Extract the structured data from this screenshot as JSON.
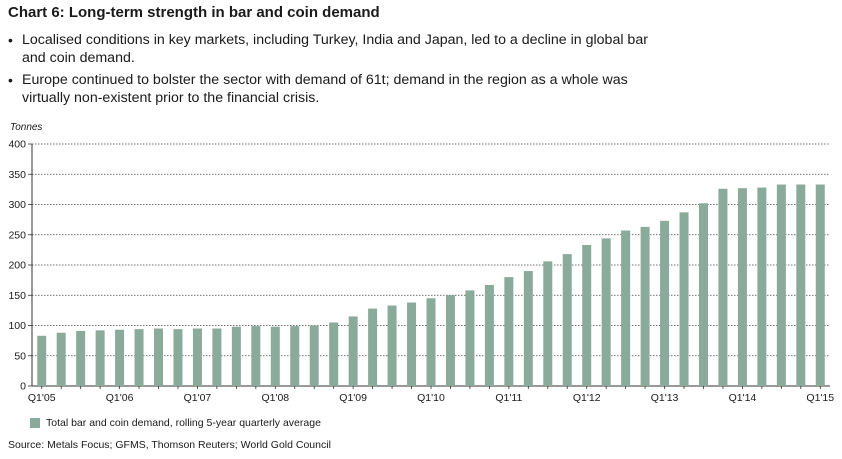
{
  "header": {
    "title": "Chart 6: Long-term strength in bar and coin demand",
    "bullets": [
      "Localised conditions in key markets, including Turkey, India and Japan, led to a decline in global bar and coin demand.",
      "Europe continued to bolster the sector with demand of 61t; demand in the region as a whole was virtually non-existent prior to the financial crisis."
    ]
  },
  "chart_data": {
    "type": "bar",
    "ylabel": "Tonnes",
    "ylim": [
      0,
      400
    ],
    "yticks": [
      0,
      50,
      100,
      150,
      200,
      250,
      300,
      350,
      400
    ],
    "grid": true,
    "bar_color": "#8aaa9b",
    "legend_position": "bottom-left",
    "categories": [
      "Q1'05",
      "Q2'05",
      "Q3'05",
      "Q4'05",
      "Q1'06",
      "Q2'06",
      "Q3'06",
      "Q4'06",
      "Q1'07",
      "Q2'07",
      "Q3'07",
      "Q4'07",
      "Q1'08",
      "Q2'08",
      "Q3'08",
      "Q4'08",
      "Q1'09",
      "Q2'09",
      "Q3'09",
      "Q4'09",
      "Q1'10",
      "Q2'10",
      "Q3'10",
      "Q4'10",
      "Q1'11",
      "Q2'11",
      "Q3'11",
      "Q4'11",
      "Q1'12",
      "Q2'12",
      "Q3'12",
      "Q4'12",
      "Q1'13",
      "Q2'13",
      "Q3'13",
      "Q4'13",
      "Q1'14",
      "Q2'14",
      "Q3'14",
      "Q4'14",
      "Q1'15"
    ],
    "tick_labels": [
      "Q1'05",
      "Q1'06",
      "Q1'07",
      "Q1'08",
      "Q1'09",
      "Q1'10",
      "Q1'11",
      "Q1'12",
      "Q1'13",
      "Q1'14",
      "Q1'15"
    ],
    "series": [
      {
        "name": "Total bar and coin demand, rolling 5-year quarterly average",
        "values": [
          83,
          88,
          91,
          92,
          93,
          94,
          95,
          94,
          95,
          95,
          98,
          99,
          98,
          99,
          100,
          105,
          115,
          128,
          133,
          138,
          145,
          150,
          158,
          167,
          180,
          190,
          206,
          218,
          233,
          244,
          257,
          263,
          273,
          287,
          302,
          326,
          327,
          328,
          333,
          333,
          333
        ]
      }
    ]
  },
  "footer": {
    "source": "Source: Metals Focus; GFMS, Thomson Reuters; World Gold Council"
  }
}
